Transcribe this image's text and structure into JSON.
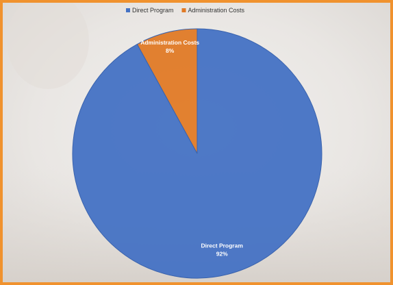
{
  "chart_data": {
    "type": "pie",
    "categories": [
      "Direct Program",
      "Administration Costs"
    ],
    "values": [
      92,
      8
    ],
    "value_labels": [
      "92%",
      "8%"
    ],
    "colors": [
      "#4472c4",
      "#e07a26"
    ],
    "legend": "top"
  }
}
